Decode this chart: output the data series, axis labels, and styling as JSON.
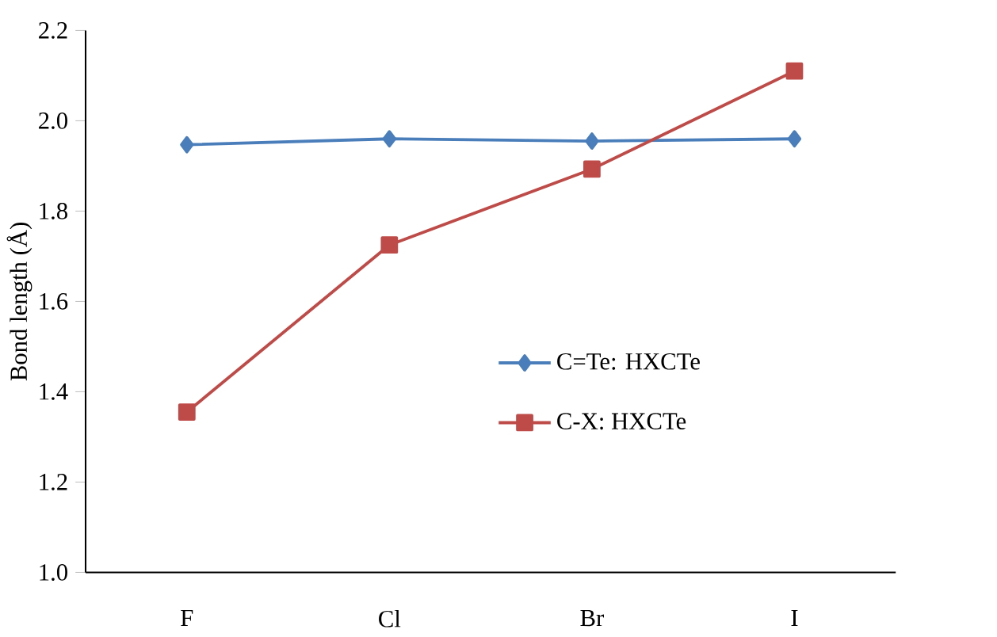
{
  "chart_data": {
    "type": "line",
    "ylabel": "Bond length (Å)",
    "categories": [
      "F",
      "Cl",
      "Br",
      "I"
    ],
    "series": [
      {
        "name": "C=Te: HXCTe",
        "color": "#4a7ebb",
        "marker": "diamond",
        "values": [
          1.947,
          1.96,
          1.955,
          1.96
        ]
      },
      {
        "name": "C-X: HXCTe",
        "color": "#be4b48",
        "marker": "square",
        "values": [
          1.355,
          1.725,
          1.893,
          2.11
        ]
      }
    ],
    "ylim": [
      1.0,
      2.2
    ],
    "yticks": [
      {
        "value": 1.0,
        "label": "1.0"
      },
      1.2,
      1.4,
      1.6,
      1.8,
      {
        "value": 2.0,
        "label": "2.0"
      },
      2.2
    ],
    "grid": false,
    "legend": "right",
    "line_style": "solid"
  }
}
